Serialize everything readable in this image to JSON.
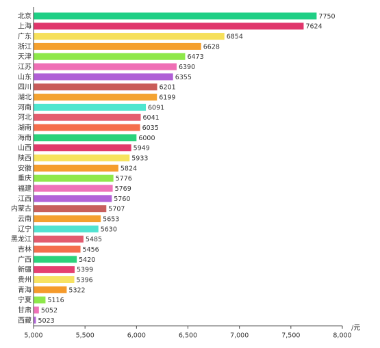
{
  "chart_data": {
    "type": "bar",
    "orientation": "horizontal",
    "categories": [
      "北京",
      "上海",
      "广东",
      "浙江",
      "天津",
      "江苏",
      "山东",
      "四川",
      "湖北",
      "河南",
      "河北",
      "湖南",
      "海南",
      "山西",
      "陕西",
      "安徽",
      "重庆",
      "福建",
      "江西",
      "内蒙古",
      "云南",
      "辽宁",
      "黑龙江",
      "吉林",
      "广西",
      "新疆",
      "贵州",
      "青海",
      "宁夏",
      "甘肃",
      "西藏"
    ],
    "values": [
      7750,
      7624,
      6854,
      6628,
      6473,
      6390,
      6355,
      6201,
      6199,
      6091,
      6041,
      6035,
      6000,
      5949,
      5933,
      5824,
      5776,
      5769,
      5760,
      5707,
      5653,
      5630,
      5485,
      5456,
      5420,
      5399,
      5396,
      5322,
      5116,
      5052,
      5023
    ],
    "value_labels": [
      "7750",
      "7624",
      "6854",
      "6628",
      "6473",
      "6390",
      "6355",
      "6201",
      "6199",
      "6091",
      "6041",
      "6035",
      "6000",
      "5949",
      "5933",
      "5824",
      "5776",
      "5769",
      "5760",
      "5707",
      "5653",
      "5630",
      "5485",
      "5456",
      "5420",
      "5399",
      "5396",
      "5322",
      "5116",
      "5052",
      "5023"
    ],
    "colors": [
      "#1fcf85",
      "#e0356b",
      "#f6e05a",
      "#f4a02e",
      "#8ee84a",
      "#ef6fb5",
      "#b05fd6",
      "#c95c59",
      "#f4a331",
      "#4ee6cf",
      "#e45d6e",
      "#f56e4c",
      "#2ad27a",
      "#e13a6a",
      "#f7e35d",
      "#f59d2c",
      "#8fe84a",
      "#ef72b8",
      "#b263d8",
      "#c75f5c",
      "#f4a030",
      "#50e3d1",
      "#e25b6e",
      "#f46d4d",
      "#2bd27b",
      "#e53f70",
      "#f7e262",
      "#f59a2b",
      "#8ee84a",
      "#ef72b8",
      "#b165d8"
    ],
    "x_ticks": [
      5000,
      5500,
      6000,
      6500,
      7000,
      7500,
      8000
    ],
    "x_tick_labels": [
      "5,000",
      "5,500",
      "6,000",
      "6,500",
      "7,000",
      "7,500",
      "8,000"
    ],
    "xlim": [
      5000,
      8000
    ],
    "x_unit": "/元",
    "grid": false,
    "title": "",
    "xlabel": "",
    "ylabel": ""
  }
}
